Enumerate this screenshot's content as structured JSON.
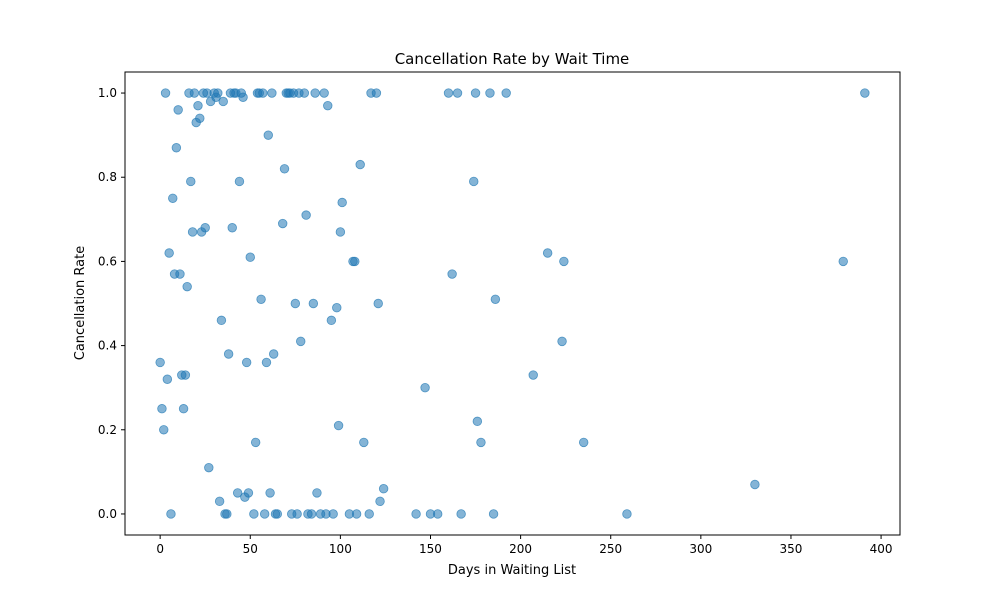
{
  "chart_data": {
    "type": "scatter",
    "title": "Cancellation Rate by Wait Time",
    "xlabel": "Days in Waiting List",
    "ylabel": "Cancellation Rate",
    "xlim": [
      -19.5,
      410.5
    ],
    "ylim": [
      -0.05,
      1.05
    ],
    "xticks": [
      0,
      50,
      100,
      150,
      200,
      250,
      300,
      350,
      400
    ],
    "yticks": [
      0.0,
      0.2,
      0.4,
      0.6,
      0.8,
      1.0
    ],
    "xtick_labels": [
      "0",
      "50",
      "100",
      "150",
      "200",
      "250",
      "300",
      "350",
      "400"
    ],
    "ytick_labels": [
      "0.0",
      "0.2",
      "0.4",
      "0.6",
      "0.8",
      "1.0"
    ],
    "grid": false,
    "marker_color": "#1f77b4",
    "marker_alpha": 0.55,
    "points": [
      [
        0,
        0.36
      ],
      [
        1,
        0.25
      ],
      [
        2,
        0.2
      ],
      [
        3,
        1.0
      ],
      [
        4,
        0.32
      ],
      [
        5,
        0.62
      ],
      [
        6,
        0.0
      ],
      [
        7,
        0.75
      ],
      [
        8,
        0.57
      ],
      [
        9,
        0.87
      ],
      [
        10,
        0.96
      ],
      [
        11,
        0.57
      ],
      [
        12,
        0.33
      ],
      [
        13,
        0.25
      ],
      [
        14,
        0.33
      ],
      [
        15,
        0.54
      ],
      [
        16,
        1.0
      ],
      [
        17,
        0.79
      ],
      [
        18,
        0.67
      ],
      [
        19,
        1.0
      ],
      [
        20,
        0.93
      ],
      [
        21,
        0.97
      ],
      [
        22,
        0.94
      ],
      [
        23,
        0.67
      ],
      [
        24,
        1.0
      ],
      [
        25,
        0.68
      ],
      [
        26,
        1.0
      ],
      [
        27,
        0.11
      ],
      [
        28,
        0.98
      ],
      [
        30,
        1.0
      ],
      [
        31,
        0.99
      ],
      [
        32,
        1.0
      ],
      [
        33,
        0.03
      ],
      [
        34,
        0.46
      ],
      [
        35,
        0.98
      ],
      [
        36,
        0.0
      ],
      [
        37,
        0.0
      ],
      [
        38,
        0.38
      ],
      [
        39,
        1.0
      ],
      [
        40,
        0.68
      ],
      [
        41,
        1.0
      ],
      [
        42,
        1.0
      ],
      [
        43,
        0.05
      ],
      [
        44,
        0.79
      ],
      [
        45,
        1.0
      ],
      [
        46,
        0.99
      ],
      [
        47,
        0.04
      ],
      [
        48,
        0.36
      ],
      [
        49,
        0.05
      ],
      [
        50,
        0.61
      ],
      [
        52,
        0.0
      ],
      [
        53,
        0.17
      ],
      [
        54,
        1.0
      ],
      [
        55,
        1.0
      ],
      [
        56,
        0.51
      ],
      [
        57,
        1.0
      ],
      [
        58,
        0.0
      ],
      [
        59,
        0.36
      ],
      [
        60,
        0.9
      ],
      [
        61,
        0.05
      ],
      [
        62,
        1.0
      ],
      [
        63,
        0.38
      ],
      [
        64,
        0.0
      ],
      [
        65,
        0.0
      ],
      [
        68,
        0.69
      ],
      [
        69,
        0.82
      ],
      [
        70,
        1.0
      ],
      [
        71,
        1.0
      ],
      [
        72,
        1.0
      ],
      [
        73,
        0.0
      ],
      [
        74,
        1.0
      ],
      [
        75,
        0.5
      ],
      [
        76,
        0.0
      ],
      [
        77,
        1.0
      ],
      [
        78,
        0.41
      ],
      [
        80,
        1.0
      ],
      [
        81,
        0.71
      ],
      [
        82,
        0.0
      ],
      [
        84,
        0.0
      ],
      [
        85,
        0.5
      ],
      [
        86,
        1.0
      ],
      [
        87,
        0.05
      ],
      [
        89,
        0.0
      ],
      [
        91,
        1.0
      ],
      [
        92,
        0.0
      ],
      [
        93,
        0.97
      ],
      [
        95,
        0.46
      ],
      [
        96,
        0.0
      ],
      [
        98,
        0.49
      ],
      [
        99,
        0.21
      ],
      [
        100,
        0.67
      ],
      [
        101,
        0.74
      ],
      [
        105,
        0.0
      ],
      [
        107,
        0.6
      ],
      [
        108,
        0.6
      ],
      [
        109,
        0.0
      ],
      [
        111,
        0.83
      ],
      [
        113,
        0.17
      ],
      [
        116,
        0.0
      ],
      [
        117,
        1.0
      ],
      [
        120,
        1.0
      ],
      [
        121,
        0.5
      ],
      [
        122,
        0.03
      ],
      [
        124,
        0.06
      ],
      [
        142,
        0.0
      ],
      [
        147,
        0.3
      ],
      [
        150,
        0.0
      ],
      [
        154,
        0.0
      ],
      [
        160,
        1.0
      ],
      [
        162,
        0.57
      ],
      [
        165,
        1.0
      ],
      [
        167,
        0.0
      ],
      [
        174,
        0.79
      ],
      [
        175,
        1.0
      ],
      [
        176,
        0.22
      ],
      [
        178,
        0.17
      ],
      [
        183,
        1.0
      ],
      [
        185,
        0.0
      ],
      [
        186,
        0.51
      ],
      [
        192,
        1.0
      ],
      [
        207,
        0.33
      ],
      [
        215,
        0.62
      ],
      [
        223,
        0.41
      ],
      [
        224,
        0.6
      ],
      [
        235,
        0.17
      ],
      [
        259,
        0.0
      ],
      [
        330,
        0.07
      ],
      [
        379,
        0.6
      ],
      [
        391,
        1.0
      ]
    ]
  }
}
